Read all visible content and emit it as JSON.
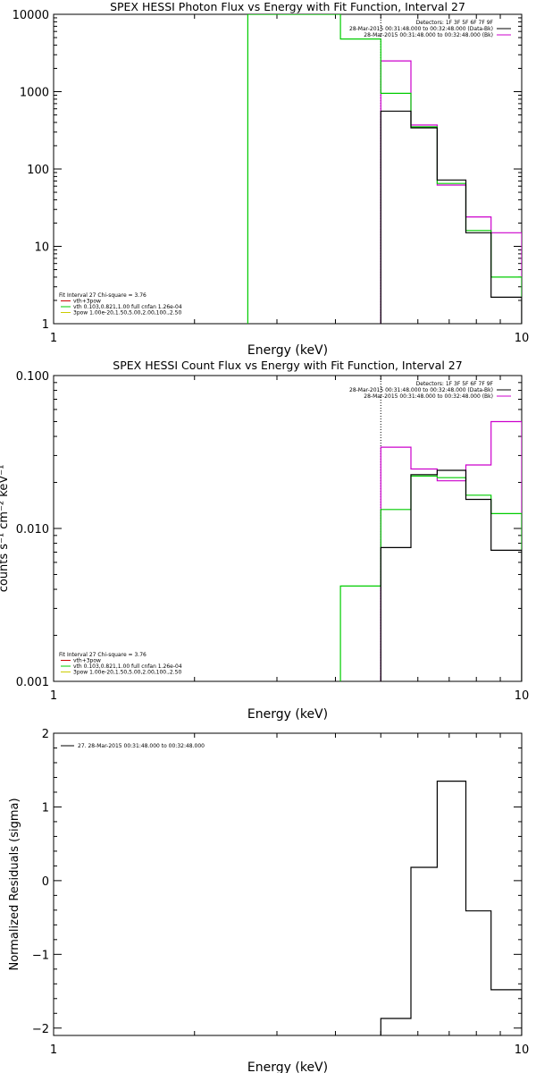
{
  "chart_data": [
    {
      "type": "line",
      "title": "SPEX HESSI Photon Flux vs Energy with Fit Function, Interval 27",
      "xlabel": "Energy (keV)",
      "ylabel": "",
      "x_scale": "log",
      "y_scale": "log",
      "xlim": [
        1,
        10
      ],
      "ylim": [
        1,
        10000
      ],
      "x_ticks": [
        {
          "v": 1,
          "label": "1"
        },
        {
          "v": 10,
          "label": "10"
        }
      ],
      "y_ticks": [
        {
          "v": 1,
          "label": "1"
        },
        {
          "v": 10,
          "label": "10"
        },
        {
          "v": 100,
          "label": "100"
        },
        {
          "v": 1000,
          "label": "1000"
        },
        {
          "v": 10000,
          "label": "10000"
        }
      ],
      "vline": 5.0,
      "header": [
        "Detectors: 1F 3F 5F 6F 7F 9F",
        "28-Mar-2015 00:31:48.000 to 00:32:48.000 (Data-Bk)",
        "28-Mar-2015 00:31:48.000 to 00:32:48.000 (Bk)"
      ],
      "header_colors": [
        "#000000",
        "#000000",
        "#cc00cc"
      ],
      "legend": [
        "Fit Interval 27   Chi-square = 3.76",
        "vth+3pow",
        "vth 0.103,0.821,1.00  full cnfan 1.26e-04",
        "3pow 1.00e-20,1.50,5.00,2.00,100.,2.50"
      ],
      "legend_colors": [
        "#000000",
        "#cc0000",
        "#00cc00",
        "#cccc00"
      ],
      "series": [
        {
          "color": "#cc00cc",
          "edges": [
            5.0,
            5.8,
            6.6,
            7.6,
            8.6,
            10.0
          ],
          "values": [
            2500,
            370,
            62,
            24,
            15
          ]
        },
        {
          "color": "#00cc00",
          "edges": [
            2.6,
            4.1,
            5.0,
            5.8,
            6.6,
            7.6,
            8.6,
            10.0
          ],
          "values": [
            10000,
            4800,
            950,
            350,
            65,
            16,
            4
          ]
        },
        {
          "color": "#000000",
          "edges": [
            5.0,
            5.8,
            6.6,
            7.6,
            8.6,
            10.0
          ],
          "values": [
            560,
            340,
            72,
            15,
            2.2
          ]
        }
      ]
    },
    {
      "type": "line",
      "title": "SPEX HESSI Count Flux vs Energy with Fit Function, Interval 27",
      "xlabel": "Energy (keV)",
      "ylabel": "counts s⁻¹ cm⁻² keV⁻¹",
      "x_scale": "log",
      "y_scale": "log",
      "xlim": [
        1,
        10
      ],
      "ylim": [
        0.001,
        0.1
      ],
      "x_ticks": [
        {
          "v": 1,
          "label": "1"
        },
        {
          "v": 10,
          "label": "10"
        }
      ],
      "y_ticks": [
        {
          "v": 0.001,
          "label": "0.001"
        },
        {
          "v": 0.01,
          "label": "0.010"
        },
        {
          "v": 0.1,
          "label": "0.100"
        }
      ],
      "vline": 5.0,
      "header": [
        "Detectors: 1F 3F 5F 6F 7F 9F",
        "28-Mar-2015 00:31:48.000 to 00:32:48.000 (Data-Bk)",
        "28-Mar-2015 00:31:48.000 to 00:32:48.000 (Bk)"
      ],
      "header_colors": [
        "#000000",
        "#000000",
        "#cc00cc"
      ],
      "legend": [
        "Fit Interval 27   Chi-square = 3.76",
        "vth+3pow",
        "vth 0.103,0.821,1.00  full cnfan 1.26e-04",
        "3pow 1.00e-20,1.50,5.00,2.00,100.,2.50"
      ],
      "legend_colors": [
        "#000000",
        "#cc0000",
        "#00cc00",
        "#cccc00"
      ],
      "series": [
        {
          "color": "#cc00cc",
          "edges": [
            5.0,
            5.8,
            6.6,
            7.6,
            8.6,
            10.0
          ],
          "values": [
            0.034,
            0.0245,
            0.0205,
            0.026,
            0.05
          ]
        },
        {
          "color": "#00cc00",
          "edges": [
            4.1,
            5.0,
            5.8,
            6.6,
            7.6,
            8.6,
            10.0
          ],
          "values": [
            0.0042,
            0.0133,
            0.022,
            0.0215,
            0.0165,
            0.0125
          ]
        },
        {
          "color": "#000000",
          "edges": [
            5.0,
            5.8,
            6.6,
            7.6,
            8.6,
            10.0
          ],
          "values": [
            0.0075,
            0.0225,
            0.024,
            0.0155,
            0.0072
          ]
        }
      ]
    },
    {
      "type": "line",
      "title": "",
      "xlabel": "Energy (keV)",
      "ylabel": "Normalized Residuals (sigma)",
      "x_scale": "log",
      "y_scale": "linear",
      "xlim": [
        1,
        10
      ],
      "ylim": [
        -2.1,
        2.0
      ],
      "x_ticks": [
        {
          "v": 1,
          "label": "1"
        },
        {
          "v": 10,
          "label": "10"
        }
      ],
      "y_ticks": [
        {
          "v": -2,
          "label": "−2"
        },
        {
          "v": -1,
          "label": "−1"
        },
        {
          "v": 0,
          "label": "0"
        },
        {
          "v": 1,
          "label": "1"
        },
        {
          "v": 2,
          "label": "2"
        }
      ],
      "legend": [
        "27. 28-Mar-2015 00:31:48.000 to 00:32:48.000"
      ],
      "legend_colors": [
        "#000000"
      ],
      "series": [
        {
          "color": "#000000",
          "edges": [
            5.0,
            5.8,
            6.6,
            7.6,
            8.6,
            10.0
          ],
          "values": [
            -1.87,
            0.18,
            1.35,
            -0.41,
            -1.48
          ]
        }
      ]
    }
  ]
}
